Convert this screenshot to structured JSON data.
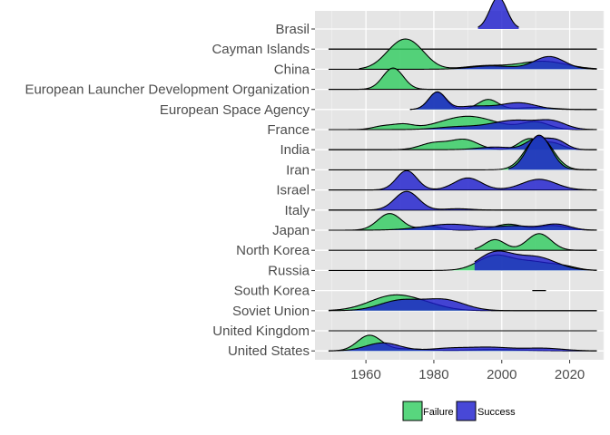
{
  "chart_data": {
    "type": "ridgeline",
    "title": "",
    "xlabel": "",
    "ylabel": "",
    "xlim": [
      1945,
      2030
    ],
    "x_ticks": [
      1960,
      1980,
      2000,
      2020
    ],
    "grid": true,
    "legend_position": "bottom",
    "colors": {
      "Failure": "#2ecc5e",
      "Success": "#1a1acd",
      "panel": "#e5e5e5",
      "grid": "#ffffff"
    },
    "legend": [
      {
        "key": "Failure",
        "label": "Failure"
      },
      {
        "key": "Success",
        "label": "Success"
      }
    ],
    "categories": [
      "Brasil",
      "Cayman Islands",
      "China",
      "European Launcher Development Organization",
      "European Space Agency",
      "France",
      "India",
      "Iran",
      "Israel",
      "Italy",
      "Japan",
      "North Korea",
      "Russia",
      "South Korea",
      "Soviet Union",
      "United Kingdom",
      "United States"
    ],
    "series": [
      {
        "name": "Failure",
        "ridges": [
          {
            "category": "Brasil",
            "range": [
              1999,
              1999
            ],
            "peaks": []
          },
          {
            "category": "Cayman Islands",
            "range": [
              1949,
              2028
            ],
            "peaks": []
          },
          {
            "category": "China",
            "range": [
              1958,
              2028
            ],
            "peaks": [
              [
                1970,
                1.75,
                4.5
              ],
              [
                1975,
                0.9,
                4
              ],
              [
                1995,
                0.25,
                6
              ],
              [
                2012,
                0.6,
                7
              ]
            ]
          },
          {
            "category": "European Launcher Development Organization",
            "range": [
              1949,
              2028
            ],
            "peaks": [
              [
                1968,
                1.6,
                3
              ]
            ]
          },
          {
            "category": "European Space Agency",
            "range": [
              1973,
              2028
            ],
            "peaks": [
              [
                1981,
                1.3,
                2.5
              ],
              [
                1996,
                0.75,
                3
              ],
              [
                2010,
                0.15,
                5
              ]
            ]
          },
          {
            "category": "France",
            "range": [
              1949,
              2028
            ],
            "peaks": [
              [
                1965,
                0.25,
                3
              ],
              [
                1971,
                0.35,
                3
              ],
              [
                1990,
                1.0,
                8
              ],
              [
                2010,
                0.55,
                4
              ]
            ]
          },
          {
            "category": "India",
            "range": [
              1949,
              2028
            ],
            "peaks": [
              [
                1980,
                0.5,
                4
              ],
              [
                1989,
                0.75,
                4
              ],
              [
                2008,
                0.8,
                3
              ],
              [
                2015,
                0.5,
                3
              ]
            ]
          },
          {
            "category": "Iran",
            "range": [
              1949,
              2028
            ],
            "peaks": [
              [
                2011,
                2.5,
                4
              ]
            ]
          },
          {
            "category": "Israel",
            "range": [
              1949,
              2028
            ],
            "peaks": []
          },
          {
            "category": "Italy",
            "range": [
              1949,
              2028
            ],
            "peaks": []
          },
          {
            "category": "Japan",
            "range": [
              1949,
              2028
            ],
            "peaks": [
              [
                1967,
                1.25,
                3.5
              ],
              [
                1979,
                0.3,
                3
              ],
              [
                2002,
                0.45,
                4
              ],
              [
                2015,
                0.35,
                4
              ]
            ]
          },
          {
            "category": "North Korea",
            "range": [
              1992,
              2028
            ],
            "peaks": [
              [
                1998,
                0.8,
                3
              ],
              [
                2011,
                1.25,
                3.5
              ]
            ]
          },
          {
            "category": "Russia",
            "range": [
              1949,
              2028
            ],
            "peaks": [
              [
                1998,
                1.1,
                5
              ],
              [
                2009,
                0.6,
                5
              ],
              [
                2018,
                0.3,
                4
              ]
            ]
          },
          {
            "category": "South Korea",
            "range": [
              2009,
              2013
            ],
            "peaks": []
          },
          {
            "category": "Soviet Union",
            "range": [
              1949,
              2028
            ],
            "peaks": [
              [
                1968,
                1.1,
                7
              ],
              [
                1978,
                0.3,
                6
              ]
            ]
          },
          {
            "category": "United Kingdom",
            "range": [
              1949,
              2028
            ],
            "peaks": []
          },
          {
            "category": "United States",
            "range": [
              1949,
              2028
            ],
            "peaks": [
              [
                1961,
                1.15,
                3.5
              ],
              [
                1972,
                0.15,
                6
              ],
              [
                1998,
                0.1,
                8
              ]
            ]
          }
        ]
      },
      {
        "name": "Success",
        "ridges": [
          {
            "category": "Brasil",
            "range": [
              1993,
              2005
            ],
            "peaks": [
              [
                1999,
                2.4,
                2.5
              ]
            ]
          },
          {
            "category": "Cayman Islands",
            "range": [
              1949,
              2028
            ],
            "peaks": []
          },
          {
            "category": "China",
            "range": [
              1949,
              2028
            ],
            "peaks": [
              [
                1997,
                0.25,
                6
              ],
              [
                2014,
                0.95,
                4.5
              ]
            ]
          },
          {
            "category": "European Launcher Development Organization",
            "range": [
              1949,
              2028
            ],
            "peaks": []
          },
          {
            "category": "European Space Agency",
            "range": [
              1973,
              2028
            ],
            "peaks": [
              [
                1981,
                1.3,
                2.5
              ],
              [
                1992,
                0.25,
                5
              ],
              [
                2005,
                0.5,
                5
              ]
            ]
          },
          {
            "category": "France",
            "range": [
              1949,
              2028
            ],
            "peaks": [
              [
                1987,
                0.2,
                6
              ],
              [
                2004,
                0.7,
                7
              ],
              [
                2015,
                0.5,
                4
              ]
            ]
          },
          {
            "category": "India",
            "range": [
              1949,
              2028
            ],
            "peaks": [
              [
                1998,
                0.2,
                5
              ],
              [
                2010,
                0.75,
                3
              ],
              [
                2016,
                0.7,
                3
              ]
            ]
          },
          {
            "category": "Iran",
            "range": [
              2002,
              2028
            ],
            "peaks": [
              [
                2011,
                2.6,
                3.5
              ]
            ]
          },
          {
            "category": "Israel",
            "range": [
              1949,
              2028
            ],
            "peaks": [
              [
                1972,
                1.45,
                3
              ],
              [
                1990,
                0.9,
                4
              ],
              [
                2011,
                0.8,
                5
              ]
            ]
          },
          {
            "category": "Italy",
            "range": [
              1949,
              2028
            ],
            "peaks": [
              [
                1972,
                1.4,
                3.5
              ],
              [
                1987,
                0.1,
                4
              ]
            ]
          },
          {
            "category": "Japan",
            "range": [
              1949,
              2028
            ],
            "peaks": [
              [
                1985,
                0.45,
                8
              ],
              [
                2004,
                0.3,
                5
              ],
              [
                2016,
                0.45,
                4
              ]
            ]
          },
          {
            "category": "North Korea",
            "range": [
              1949,
              2028
            ],
            "peaks": []
          },
          {
            "category": "Russia",
            "range": [
              1992,
              2028
            ],
            "peaks": [
              [
                1998,
                1.3,
                5
              ],
              [
                2010,
                1.0,
                6
              ]
            ]
          },
          {
            "category": "South Korea",
            "range": [
              2009,
              2013
            ],
            "peaks": []
          },
          {
            "category": "Soviet Union",
            "range": [
              1949,
              2028
            ],
            "peaks": [
              [
                1970,
                0.75,
                6
              ],
              [
                1983,
                0.8,
                6
              ]
            ]
          },
          {
            "category": "United Kingdom",
            "range": [
              1949,
              2028
            ],
            "peaks": []
          },
          {
            "category": "United States",
            "range": [
              1949,
              2028
            ],
            "peaks": [
              [
                1965,
                0.6,
                5
              ],
              [
                1985,
                0.2,
                6
              ],
              [
                1997,
                0.25,
                6
              ],
              [
                2012,
                0.2,
                6
              ]
            ]
          }
        ]
      }
    ]
  }
}
